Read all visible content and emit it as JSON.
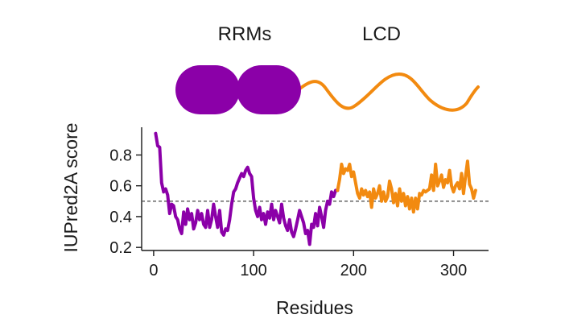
{
  "domains": {
    "rrm_label": "RRMs",
    "lcd_label": "LCD",
    "rrm_color": "#8B00A8",
    "lcd_color": "#F28A10"
  },
  "chart_data": {
    "type": "line",
    "title": "",
    "xlabel": "Residues",
    "ylabel": "IUPred2A score",
    "xlim": [
      -12,
      335
    ],
    "ylim": [
      0.18,
      0.98
    ],
    "xticks": [
      0,
      100,
      200,
      300
    ],
    "yticks": [
      0.2,
      0.4,
      0.6,
      0.8
    ],
    "xtick_labels": [
      "0",
      "100",
      "200",
      "300"
    ],
    "ytick_labels": [
      "0.2",
      "0.4",
      "0.6",
      "0.8"
    ],
    "threshold": 0.5,
    "grid": false,
    "series": [
      {
        "color": "#8B00A8",
        "x": [
          2,
          4,
          6,
          8,
          10,
          12,
          14,
          16,
          18,
          20,
          22,
          24,
          26,
          28,
          30,
          32,
          34,
          36,
          38,
          40,
          42,
          44,
          46,
          48,
          50,
          52,
          54,
          56,
          58,
          60,
          62,
          64,
          66,
          68,
          70,
          72,
          74,
          76,
          78,
          80,
          82,
          84,
          86,
          88,
          90,
          92,
          94,
          96,
          98,
          100,
          102,
          104,
          106,
          108,
          110,
          112,
          114,
          116,
          118,
          120,
          122,
          124,
          126,
          128,
          130,
          132,
          134,
          136,
          138,
          140,
          142,
          144,
          146,
          148,
          150,
          152,
          154,
          156,
          158,
          160,
          162,
          164,
          166,
          168,
          170,
          172,
          174,
          176,
          178,
          180,
          182,
          184
        ],
        "y": [
          0.94,
          0.86,
          0.85,
          0.62,
          0.56,
          0.58,
          0.54,
          0.42,
          0.48,
          0.47,
          0.4,
          0.38,
          0.32,
          0.29,
          0.43,
          0.35,
          0.45,
          0.38,
          0.42,
          0.32,
          0.36,
          0.44,
          0.38,
          0.42,
          0.35,
          0.33,
          0.44,
          0.33,
          0.38,
          0.48,
          0.4,
          0.33,
          0.44,
          0.3,
          0.28,
          0.32,
          0.31,
          0.38,
          0.48,
          0.56,
          0.58,
          0.62,
          0.65,
          0.68,
          0.66,
          0.7,
          0.72,
          0.68,
          0.66,
          0.52,
          0.44,
          0.4,
          0.46,
          0.38,
          0.42,
          0.35,
          0.43,
          0.39,
          0.48,
          0.38,
          0.44,
          0.4,
          0.36,
          0.48,
          0.39,
          0.34,
          0.31,
          0.38,
          0.3,
          0.27,
          0.32,
          0.38,
          0.44,
          0.4,
          0.36,
          0.29,
          0.31,
          0.22,
          0.35,
          0.33,
          0.42,
          0.34,
          0.46,
          0.4,
          0.33,
          0.44,
          0.5,
          0.48,
          0.56,
          0.53,
          0.57,
          0.57
        ]
      },
      {
        "color": "#F28A10",
        "x": [
          184,
          186,
          188,
          190,
          192,
          194,
          196,
          198,
          200,
          202,
          204,
          206,
          208,
          210,
          212,
          214,
          216,
          218,
          220,
          222,
          224,
          226,
          228,
          230,
          232,
          234,
          236,
          238,
          240,
          242,
          244,
          246,
          248,
          250,
          252,
          254,
          256,
          258,
          260,
          262,
          264,
          266,
          268,
          270,
          272,
          274,
          276,
          278,
          280,
          282,
          284,
          286,
          288,
          290,
          292,
          294,
          296,
          298,
          300,
          302,
          304,
          306,
          308,
          310,
          312,
          314,
          316,
          318,
          320,
          322
        ],
        "y": [
          0.57,
          0.64,
          0.74,
          0.68,
          0.71,
          0.7,
          0.74,
          0.66,
          0.69,
          0.62,
          0.55,
          0.52,
          0.58,
          0.54,
          0.57,
          0.53,
          0.56,
          0.46,
          0.58,
          0.52,
          0.55,
          0.6,
          0.5,
          0.56,
          0.5,
          0.53,
          0.63,
          0.58,
          0.49,
          0.55,
          0.47,
          0.58,
          0.5,
          0.55,
          0.47,
          0.53,
          0.45,
          0.52,
          0.43,
          0.52,
          0.45,
          0.55,
          0.54,
          0.57,
          0.56,
          0.57,
          0.58,
          0.67,
          0.57,
          0.74,
          0.6,
          0.63,
          0.67,
          0.59,
          0.64,
          0.62,
          0.7,
          0.6,
          0.56,
          0.6,
          0.62,
          0.58,
          0.68,
          0.55,
          0.66,
          0.76,
          0.61,
          0.58,
          0.52,
          0.57
        ]
      }
    ]
  }
}
